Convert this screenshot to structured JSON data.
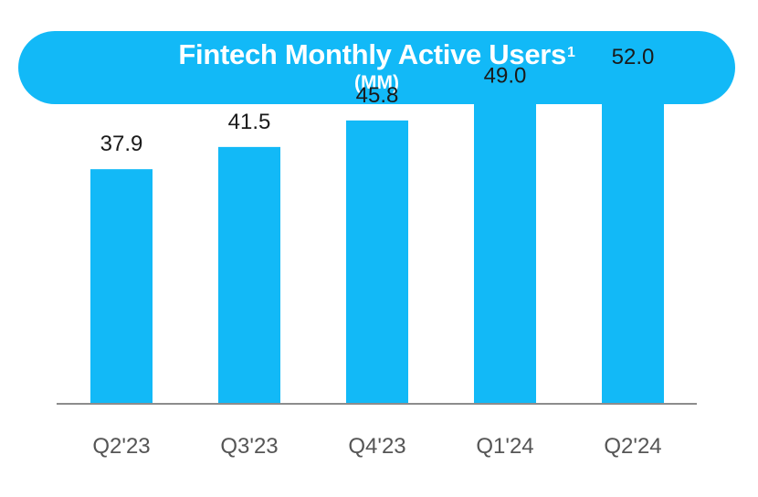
{
  "chart_data": {
    "type": "bar",
    "title": "Fintech Monthly Active Users",
    "title_superscript": "1",
    "subtitle": "(MM)",
    "categories": [
      "Q2'23",
      "Q3'23",
      "Q4'23",
      "Q1'24",
      "Q2'24"
    ],
    "values": [
      37.9,
      41.5,
      45.8,
      49.0,
      52.0
    ],
    "value_labels": [
      "37.9",
      "41.5",
      "45.8",
      "49.0",
      "52.0"
    ],
    "ylim": [
      0,
      55
    ],
    "grid": false,
    "legend": "none"
  },
  "colors": {
    "bar": "#12B9F7",
    "title_background": "#12B9F7",
    "title_text": "#FFFFFF",
    "axis_line": "#8C8C8C",
    "value_text": "#1A1A1A",
    "category_text": "#555555"
  }
}
